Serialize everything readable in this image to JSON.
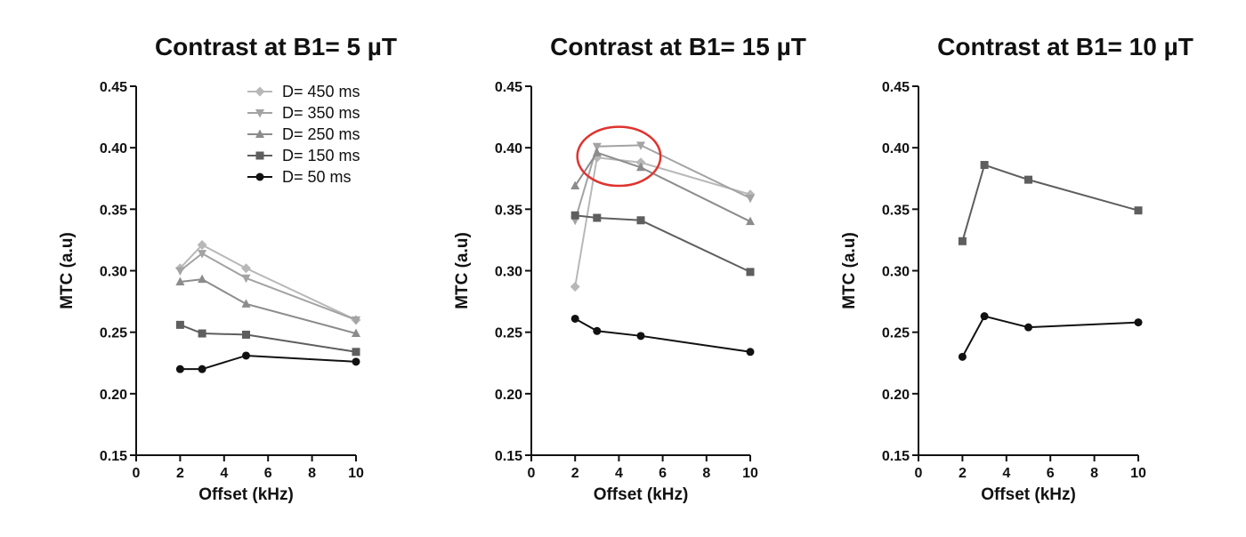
{
  "colors": {
    "D= 450 ms": "#b8b8b8",
    "D= 350 ms": "#a3a3a3",
    "D= 250 ms": "#8c8c8c",
    "D= 150 ms": "#5e5e5e",
    "D= 50 ms": "#111111",
    "highlight": "#e0332f",
    "axis": "#111111"
  },
  "legend_labels": [
    "D= 450 ms",
    "D= 350 ms",
    "D= 250 ms",
    "D= 150 ms",
    "D= 50 ms"
  ],
  "chart_data": [
    {
      "type": "line",
      "title": "Contrast at B1= 5 µT",
      "xlabel": "Offset (kHz)",
      "ylabel": "MTC (a.u)",
      "xlim": [
        0,
        10
      ],
      "ylim": [
        0.15,
        0.45
      ],
      "xticks": [
        "0",
        "2",
        "4",
        "6",
        "8",
        "10"
      ],
      "yticks": [
        "0.15",
        "0.20",
        "0.25",
        "0.30",
        "0.35",
        "0.40",
        "0.45"
      ],
      "legend": "top-right",
      "x": [
        2,
        3,
        5,
        10
      ],
      "series": [
        {
          "name": "D= 450 ms",
          "marker": "diamond",
          "values": [
            0.302,
            0.321,
            0.302,
            0.26
          ]
        },
        {
          "name": "D= 350 ms",
          "marker": "triangle-down",
          "values": [
            0.3,
            0.314,
            0.294,
            0.26
          ]
        },
        {
          "name": "D= 250 ms",
          "marker": "triangle-up",
          "values": [
            0.291,
            0.293,
            0.273,
            0.249
          ]
        },
        {
          "name": "D= 150 ms",
          "marker": "square",
          "values": [
            0.256,
            0.249,
            0.248,
            0.234
          ]
        },
        {
          "name": "D= 50 ms",
          "marker": "circle",
          "values": [
            0.22,
            0.22,
            0.231,
            0.226
          ]
        }
      ]
    },
    {
      "type": "line",
      "title": "Contrast at B1= 15 µT",
      "xlabel": "Offset (kHz)",
      "ylabel": "MTC (a.u)",
      "xlim": [
        0,
        10
      ],
      "ylim": [
        0.15,
        0.45
      ],
      "xticks": [
        "0",
        "2",
        "4",
        "6",
        "8",
        "10"
      ],
      "yticks": [
        "0.15",
        "0.20",
        "0.25",
        "0.30",
        "0.35",
        "0.40",
        "0.45"
      ],
      "x": [
        2,
        3,
        5,
        10
      ],
      "highlight": {
        "shape": "ellipse",
        "cx": 4,
        "cy": 0.393,
        "rx": 1.9,
        "ry": 0.024
      },
      "series": [
        {
          "name": "D= 450 ms",
          "marker": "diamond",
          "values": [
            0.287,
            0.392,
            0.388,
            0.362
          ]
        },
        {
          "name": "D= 350 ms",
          "marker": "triangle-down",
          "values": [
            0.341,
            0.401,
            0.402,
            0.359
          ]
        },
        {
          "name": "D= 250 ms",
          "marker": "triangle-up",
          "values": [
            0.369,
            0.396,
            0.384,
            0.34
          ]
        },
        {
          "name": "D= 150 ms",
          "marker": "square",
          "values": [
            0.345,
            0.343,
            0.341,
            0.299
          ]
        },
        {
          "name": "D= 50 ms",
          "marker": "circle",
          "values": [
            0.261,
            0.251,
            0.247,
            0.234
          ]
        }
      ]
    },
    {
      "type": "line",
      "title": "Contrast at B1= 10 µT",
      "xlabel": "Offset (kHz)",
      "ylabel": "MTC (a.u)",
      "xlim": [
        0,
        10
      ],
      "ylim": [
        0.15,
        0.45
      ],
      "xticks": [
        "0",
        "2",
        "4",
        "6",
        "8",
        "10"
      ],
      "yticks": [
        "0.15",
        "0.20",
        "0.25",
        "0.30",
        "0.35",
        "0.40",
        "0.45"
      ],
      "x": [
        2,
        3,
        5,
        10
      ],
      "series": [
        {
          "name": "D= 150 ms",
          "marker": "square",
          "values": [
            0.324,
            0.386,
            0.374,
            0.349
          ]
        },
        {
          "name": "D= 50 ms",
          "marker": "circle",
          "values": [
            0.23,
            0.263,
            0.254,
            0.258
          ]
        }
      ]
    }
  ]
}
